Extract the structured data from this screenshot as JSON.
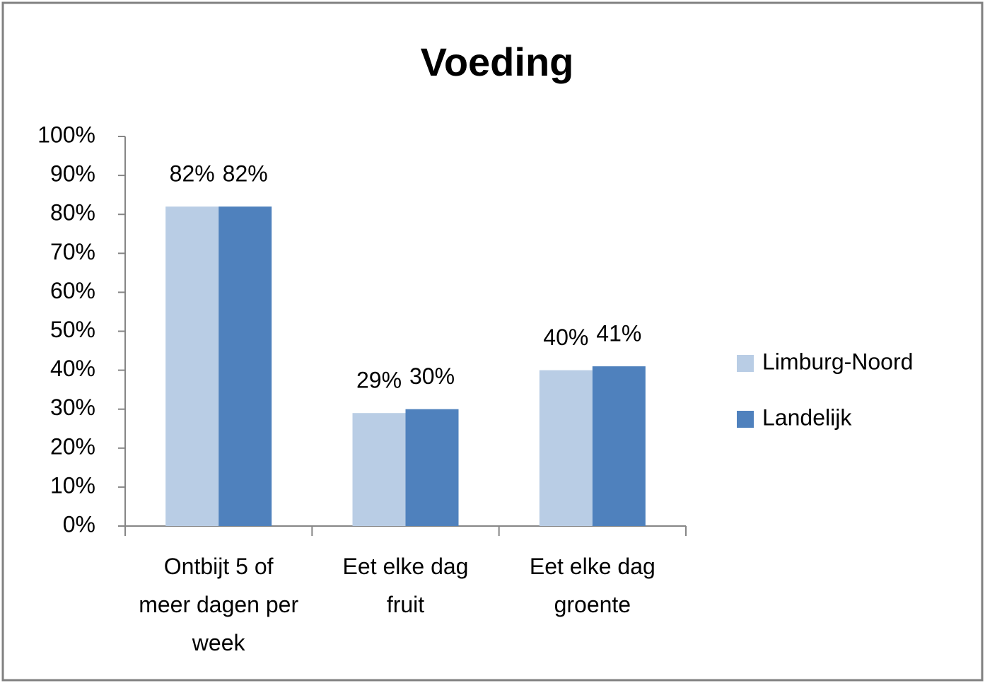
{
  "chart_data": {
    "type": "bar",
    "title": "Voeding",
    "categories": [
      "Ontbijt 5 of meer dagen per week",
      "Eet elke dag fruit",
      "Eet elke dag groente"
    ],
    "series": [
      {
        "name": "Limburg-Noord",
        "color": "#b9cde5",
        "values": [
          82,
          29,
          40
        ],
        "value_labels": [
          "82%",
          "29%",
          "40%"
        ]
      },
      {
        "name": "Landelijk",
        "color": "#4f81bd",
        "values": [
          82,
          30,
          41
        ],
        "value_labels": [
          "82%",
          "30%",
          "41%"
        ]
      }
    ],
    "ylim": [
      0,
      100
    ],
    "yticks": [
      {
        "value": 0,
        "label": "0%"
      },
      {
        "value": 10,
        "label": "10%"
      },
      {
        "value": 20,
        "label": "20%"
      },
      {
        "value": 30,
        "label": "30%"
      },
      {
        "value": 40,
        "label": "40%"
      },
      {
        "value": 50,
        "label": "50%"
      },
      {
        "value": 60,
        "label": "60%"
      },
      {
        "value": 70,
        "label": "70%"
      },
      {
        "value": 80,
        "label": "80%"
      },
      {
        "value": 90,
        "label": "90%"
      },
      {
        "value": 100,
        "label": "100%"
      }
    ],
    "grid": false,
    "legend": "right"
  }
}
